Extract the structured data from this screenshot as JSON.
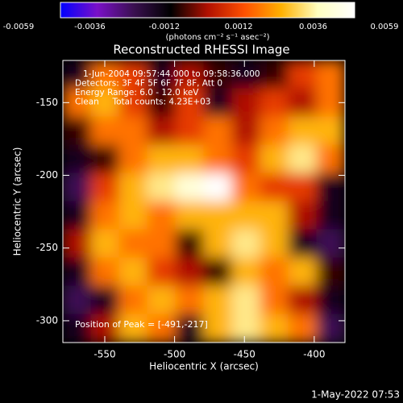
{
  "chart_data": {
    "type": "heatmap",
    "title": "Reconstructed RHESSI Image",
    "colorbar_label": "(photons cm⁻² s⁻¹ asec⁻²)",
    "x_label": "Heliocentric X (arcsec)",
    "y_label": "Heliocentric Y (arcsec)",
    "annotations": [
      "1-Jun-2004 09:57:44.000 to 09:58:36.000",
      "Detectors: 3F 4F 5F 6F 7F 8F, Att 0",
      "Energy Range: 6.0 - 12.0 keV",
      "Clean     Total counts: 4.23E+03"
    ],
    "peak_label": "Position of Peak = [-491,-217]",
    "timestamp": "1-May-2022 07:53",
    "xlim": [
      -580,
      -378
    ],
    "xticks": [
      -550,
      -500,
      -450,
      -400
    ],
    "ylim": [
      -315,
      -121
    ],
    "yticks": [
      -300,
      -250,
      -200,
      -150
    ],
    "zlim": [
      -0.0059,
      0.0059
    ],
    "zticks": [
      -0.0059,
      -0.0036,
      -0.0012,
      0.0012,
      0.0036,
      0.0059
    ],
    "colormap": [
      "#0000ff",
      "#7a10c8",
      "#3a1050",
      "#000000",
      "#b01000",
      "#ff5000",
      "#ffb000",
      "#ffffc0",
      "#ffffff"
    ],
    "z": [
      [
        -0.002,
        0.002,
        0.001,
        -0.002,
        0.0,
        -0.001,
        -0.002,
        -0.001,
        0.001,
        0.002
      ],
      [
        0.002,
        0.003,
        0.001,
        -0.001,
        0.001,
        -0.002,
        0.0,
        0.001,
        0.0,
        0.002
      ],
      [
        -0.001,
        0.002,
        0.002,
        0.0,
        0.001,
        0.002,
        0.0,
        0.002,
        0.003,
        0.003
      ],
      [
        -0.002,
        -0.001,
        0.002,
        0.003,
        0.003,
        0.002,
        0.001,
        0.003,
        0.004,
        0.002
      ],
      [
        -0.003,
        0.001,
        0.003,
        0.004,
        0.005,
        0.0059,
        0.002,
        0.001,
        0.001,
        -0.002
      ],
      [
        -0.002,
        0.002,
        0.003,
        0.002,
        0.003,
        0.003,
        0.003,
        0.003,
        0.0,
        -0.002
      ],
      [
        0.0,
        0.003,
        0.002,
        0.002,
        -0.001,
        0.003,
        0.004,
        0.003,
        -0.002,
        -0.003
      ],
      [
        -0.002,
        0.002,
        0.003,
        0.001,
        0.0,
        -0.001,
        0.003,
        0.002,
        0.003,
        -0.001
      ],
      [
        -0.003,
        -0.002,
        0.002,
        0.003,
        0.002,
        0.003,
        0.004,
        0.002,
        0.0,
        -0.002
      ],
      [
        -0.002,
        0.0,
        0.003,
        0.002,
        -0.002,
        0.003,
        0.004,
        0.003,
        0.002,
        -0.003
      ]
    ]
  }
}
